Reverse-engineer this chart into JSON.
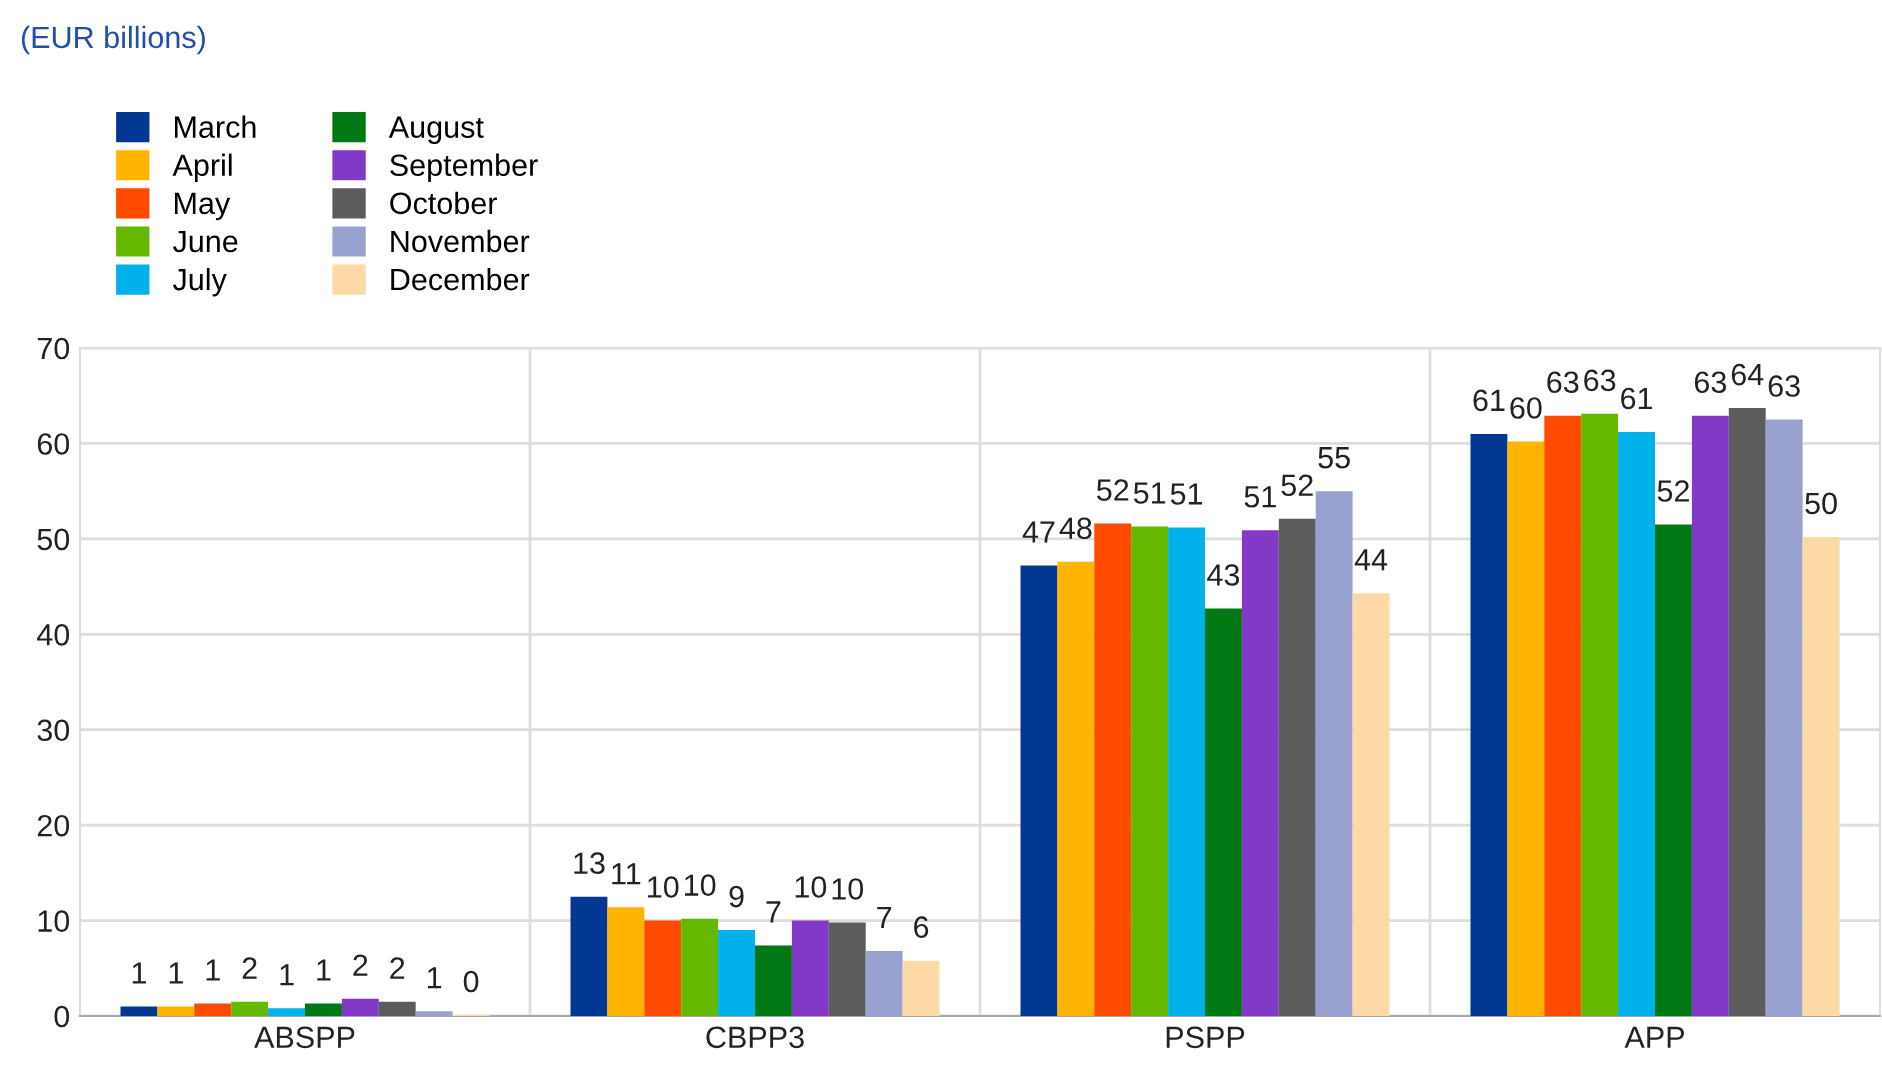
{
  "chart_data": {
    "type": "bar",
    "annotations": [
      "(EUR billions)"
    ],
    "categories": [
      "ABSPP",
      "CBPP3",
      "PSPP",
      "APP"
    ],
    "series": [
      {
        "name": "March",
        "color": "#003894",
        "values": [
          1.0,
          12.5,
          47.2,
          61.0
        ],
        "value_labels": [
          "1",
          "13",
          "47",
          "61"
        ]
      },
      {
        "name": "April",
        "color": "#ffb400",
        "values": [
          1.0,
          11.4,
          47.6,
          60.2
        ],
        "value_labels": [
          "1",
          "11",
          "48",
          "60"
        ]
      },
      {
        "name": "May",
        "color": "#ff4b00",
        "values": [
          1.3,
          10.0,
          51.6,
          62.9
        ],
        "value_labels": [
          "1",
          "10",
          "52",
          "63"
        ]
      },
      {
        "name": "June",
        "color": "#65b800",
        "values": [
          1.5,
          10.2,
          51.3,
          63.1
        ],
        "value_labels": [
          "2",
          "10",
          "51",
          "63"
        ]
      },
      {
        "name": "July",
        "color": "#00b1ea",
        "values": [
          0.8,
          9.0,
          51.2,
          61.2
        ],
        "value_labels": [
          "1",
          "9",
          "51",
          "61"
        ]
      },
      {
        "name": "August",
        "color": "#007816",
        "values": [
          1.3,
          7.4,
          42.7,
          51.5
        ],
        "value_labels": [
          "1",
          "7",
          "43",
          "52"
        ]
      },
      {
        "name": "September",
        "color": "#8139c6",
        "values": [
          1.8,
          10.0,
          50.9,
          62.9
        ],
        "value_labels": [
          "2",
          "10",
          "51",
          "63"
        ]
      },
      {
        "name": "October",
        "color": "#5c5c5c",
        "values": [
          1.5,
          9.8,
          52.1,
          63.7
        ],
        "value_labels": [
          "2",
          "10",
          "52",
          "64"
        ]
      },
      {
        "name": "November",
        "color": "#98a1d0",
        "values": [
          0.5,
          6.8,
          55.0,
          62.5
        ],
        "value_labels": [
          "1",
          "7",
          "55",
          "63"
        ]
      },
      {
        "name": "December",
        "color": "#fdd9a5",
        "values": [
          0.1,
          5.8,
          44.3,
          50.2
        ],
        "value_labels": [
          "0",
          "6",
          "44",
          "50"
        ]
      }
    ],
    "ylim": [
      0,
      70
    ],
    "yticks": [
      0,
      10,
      20,
      30,
      40,
      50,
      60,
      70
    ],
    "grid": true,
    "legend": "top left"
  }
}
